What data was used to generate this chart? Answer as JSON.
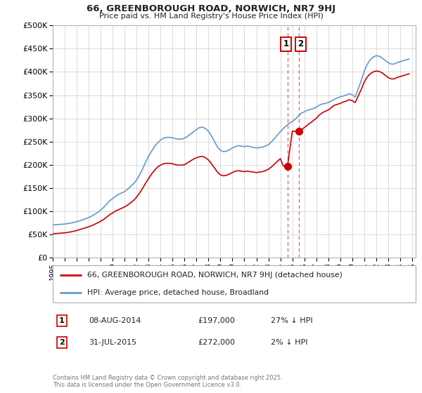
{
  "title": "66, GREENBOROUGH ROAD, NORWICH, NR7 9HJ",
  "subtitle": "Price paid vs. HM Land Registry's House Price Index (HPI)",
  "ylabel_ticks": [
    "£0",
    "£50K",
    "£100K",
    "£150K",
    "£200K",
    "£250K",
    "£300K",
    "£350K",
    "£400K",
    "£450K",
    "£500K"
  ],
  "ytick_vals": [
    0,
    50000,
    100000,
    150000,
    200000,
    250000,
    300000,
    350000,
    400000,
    450000,
    500000
  ],
  "ylim": [
    0,
    500000
  ],
  "xlim_start": 1995.0,
  "xlim_end": 2025.3,
  "legend_label_red": "66, GREENBOROUGH ROAD, NORWICH, NR7 9HJ (detached house)",
  "legend_label_blue": "HPI: Average price, detached house, Broadland",
  "transaction1_date": "08-AUG-2014",
  "transaction1_price": "£197,000",
  "transaction1_hpi": "27% ↓ HPI",
  "transaction1_x": 2014.6,
  "transaction1_y": 197000,
  "transaction2_date": "31-JUL-2015",
  "transaction2_price": "£272,000",
  "transaction2_hpi": "2% ↓ HPI",
  "transaction2_x": 2015.58,
  "transaction2_y": 272000,
  "copyright": "Contains HM Land Registry data © Crown copyright and database right 2025.\nThis data is licensed under the Open Government Licence v3.0.",
  "line_color_red": "#cc0000",
  "line_color_blue": "#6699cc",
  "marker_dashed_color": "#dd4444",
  "background_color": "#ffffff",
  "grid_color": "#cccccc",
  "hpi_data": {
    "years": [
      1995.0,
      1995.25,
      1995.5,
      1995.75,
      1996.0,
      1996.25,
      1996.5,
      1996.75,
      1997.0,
      1997.25,
      1997.5,
      1997.75,
      1998.0,
      1998.25,
      1998.5,
      1998.75,
      1999.0,
      1999.25,
      1999.5,
      1999.75,
      2000.0,
      2000.25,
      2000.5,
      2000.75,
      2001.0,
      2001.25,
      2001.5,
      2001.75,
      2002.0,
      2002.25,
      2002.5,
      2002.75,
      2003.0,
      2003.25,
      2003.5,
      2003.75,
      2004.0,
      2004.25,
      2004.5,
      2004.75,
      2005.0,
      2005.25,
      2005.5,
      2005.75,
      2006.0,
      2006.25,
      2006.5,
      2006.75,
      2007.0,
      2007.25,
      2007.5,
      2007.75,
      2008.0,
      2008.25,
      2008.5,
      2008.75,
      2009.0,
      2009.25,
      2009.5,
      2009.75,
      2010.0,
      2010.25,
      2010.5,
      2010.75,
      2011.0,
      2011.25,
      2011.5,
      2011.75,
      2012.0,
      2012.25,
      2012.5,
      2012.75,
      2013.0,
      2013.25,
      2013.5,
      2013.75,
      2014.0,
      2014.25,
      2014.5,
      2014.75,
      2015.0,
      2015.25,
      2015.5,
      2015.75,
      2016.0,
      2016.25,
      2016.5,
      2016.75,
      2017.0,
      2017.25,
      2017.5,
      2017.75,
      2018.0,
      2018.25,
      2018.5,
      2018.75,
      2019.0,
      2019.25,
      2019.5,
      2019.75,
      2020.0,
      2020.25,
      2020.5,
      2020.75,
      2021.0,
      2021.25,
      2021.5,
      2021.75,
      2022.0,
      2022.25,
      2022.5,
      2022.75,
      2023.0,
      2023.25,
      2023.5,
      2023.75,
      2024.0,
      2024.25,
      2024.5,
      2024.75
    ],
    "values": [
      70000,
      70500,
      71000,
      71500,
      72000,
      73000,
      74000,
      75500,
      77000,
      79000,
      81000,
      83500,
      86000,
      89000,
      93000,
      97000,
      102000,
      108000,
      115000,
      122000,
      127000,
      132000,
      136000,
      139000,
      142000,
      147000,
      153000,
      159000,
      167000,
      178000,
      191000,
      205000,
      218000,
      229000,
      239000,
      247000,
      253000,
      257000,
      259000,
      259000,
      258000,
      256000,
      255000,
      255000,
      257000,
      261000,
      266000,
      271000,
      276000,
      280000,
      281000,
      278000,
      272000,
      262000,
      250000,
      238000,
      231000,
      228000,
      229000,
      232000,
      236000,
      239000,
      241000,
      240000,
      239000,
      240000,
      239000,
      237000,
      236000,
      237000,
      238000,
      240000,
      243000,
      249000,
      256000,
      264000,
      271000,
      278000,
      284000,
      289000,
      293000,
      298000,
      305000,
      311000,
      314000,
      317000,
      319000,
      321000,
      324000,
      328000,
      331000,
      332000,
      334000,
      337000,
      341000,
      344000,
      346000,
      348000,
      350000,
      353000,
      351000,
      346000,
      363000,
      381000,
      401000,
      416000,
      426000,
      432000,
      435000,
      434000,
      430000,
      425000,
      420000,
      417000,
      417000,
      420000,
      422000,
      424000,
      426000,
      428000
    ]
  },
  "price_data": {
    "years": [
      1995.0,
      1995.25,
      1995.5,
      1995.75,
      1996.0,
      1996.25,
      1996.5,
      1996.75,
      1997.0,
      1997.25,
      1997.5,
      1997.75,
      1998.0,
      1998.25,
      1998.5,
      1998.75,
      1999.0,
      1999.25,
      1999.5,
      1999.75,
      2000.0,
      2000.25,
      2000.5,
      2000.75,
      2001.0,
      2001.25,
      2001.5,
      2001.75,
      2002.0,
      2002.25,
      2002.5,
      2002.75,
      2003.0,
      2003.25,
      2003.5,
      2003.75,
      2004.0,
      2004.25,
      2004.5,
      2004.75,
      2005.0,
      2005.25,
      2005.5,
      2005.75,
      2006.0,
      2006.25,
      2006.5,
      2006.75,
      2007.0,
      2007.25,
      2007.5,
      2007.75,
      2008.0,
      2008.25,
      2008.5,
      2008.75,
      2009.0,
      2009.25,
      2009.5,
      2009.75,
      2010.0,
      2010.25,
      2010.5,
      2010.75,
      2011.0,
      2011.25,
      2011.5,
      2011.75,
      2012.0,
      2012.25,
      2012.5,
      2012.75,
      2013.0,
      2013.25,
      2013.5,
      2013.75,
      2014.0,
      2014.25,
      2014.5,
      2014.6,
      2015.0,
      2015.25,
      2015.5,
      2015.58,
      2016.0,
      2016.25,
      2016.5,
      2016.75,
      2017.0,
      2017.25,
      2017.5,
      2017.75,
      2018.0,
      2018.25,
      2018.5,
      2018.75,
      2019.0,
      2019.25,
      2019.5,
      2019.75,
      2020.0,
      2020.25,
      2020.5,
      2020.75,
      2021.0,
      2021.25,
      2021.5,
      2021.75,
      2022.0,
      2022.25,
      2022.5,
      2022.75,
      2023.0,
      2023.25,
      2023.5,
      2023.75,
      2024.0,
      2024.25,
      2024.5,
      2024.75
    ],
    "values": [
      51000,
      51500,
      52000,
      52500,
      53000,
      54000,
      55000,
      56500,
      58000,
      60000,
      62000,
      64000,
      66000,
      68500,
      71500,
      74500,
      78000,
      82000,
      87000,
      92000,
      96000,
      100000,
      103000,
      106000,
      109000,
      113000,
      118000,
      123000,
      130000,
      139000,
      149000,
      160000,
      170000,
      180000,
      188000,
      195000,
      199000,
      202000,
      203000,
      203000,
      202000,
      200000,
      199000,
      199000,
      200000,
      204000,
      208000,
      212000,
      215000,
      217000,
      218000,
      215000,
      210000,
      202000,
      193000,
      184000,
      178000,
      176000,
      177000,
      180000,
      183000,
      186000,
      187000,
      186000,
      185000,
      186000,
      185000,
      184000,
      183000,
      184000,
      185000,
      187000,
      190000,
      195000,
      201000,
      207000,
      213000,
      197000,
      197000,
      197000,
      272000,
      272000,
      272000,
      272000,
      280000,
      285000,
      290000,
      295000,
      300000,
      307000,
      312000,
      315000,
      318000,
      323000,
      328000,
      330000,
      332000,
      335000,
      337000,
      340000,
      338000,
      334000,
      348000,
      362000,
      378000,
      389000,
      396000,
      400000,
      402000,
      401000,
      398000,
      393000,
      388000,
      385000,
      385000,
      388000,
      390000,
      392000,
      394000,
      396000
    ]
  }
}
